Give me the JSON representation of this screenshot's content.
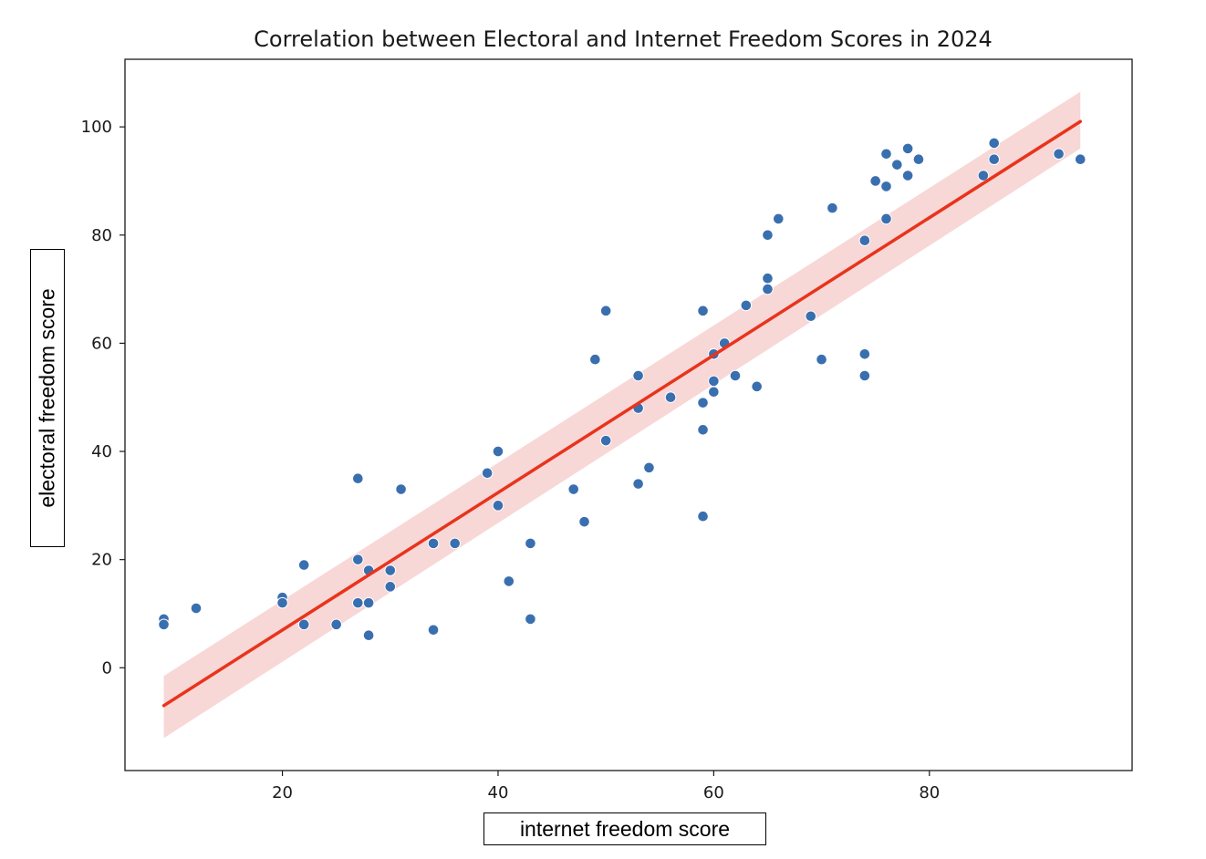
{
  "chart_data": {
    "type": "scatter",
    "title": "Correlation between Electoral and Internet Freedom Scores in 2024",
    "xlabel": "internet freedom score",
    "ylabel": "electoral freedom score",
    "xlim": [
      5.4,
      98.8
    ],
    "ylim": [
      -19.0,
      112.5
    ],
    "x_ticks": [
      20,
      40,
      60,
      80
    ],
    "y_ticks": [
      0,
      20,
      40,
      60,
      80,
      100
    ],
    "grid": false,
    "points": [
      {
        "x": 9,
        "y": 9
      },
      {
        "x": 9,
        "y": 8
      },
      {
        "x": 12,
        "y": 11
      },
      {
        "x": 20,
        "y": 13
      },
      {
        "x": 20,
        "y": 12
      },
      {
        "x": 22,
        "y": 19
      },
      {
        "x": 22,
        "y": 8
      },
      {
        "x": 25,
        "y": 8
      },
      {
        "x": 27,
        "y": 35
      },
      {
        "x": 27,
        "y": 20
      },
      {
        "x": 27,
        "y": 12
      },
      {
        "x": 28,
        "y": 18
      },
      {
        "x": 28,
        "y": 12
      },
      {
        "x": 28,
        "y": 6
      },
      {
        "x": 30,
        "y": 18
      },
      {
        "x": 30,
        "y": 15
      },
      {
        "x": 31,
        "y": 33
      },
      {
        "x": 34,
        "y": 23
      },
      {
        "x": 34,
        "y": 7
      },
      {
        "x": 36,
        "y": 23
      },
      {
        "x": 39,
        "y": 36
      },
      {
        "x": 40,
        "y": 40
      },
      {
        "x": 40,
        "y": 30
      },
      {
        "x": 41,
        "y": 16
      },
      {
        "x": 43,
        "y": 23
      },
      {
        "x": 43,
        "y": 9
      },
      {
        "x": 47,
        "y": 33
      },
      {
        "x": 48,
        "y": 27
      },
      {
        "x": 49,
        "y": 57
      },
      {
        "x": 50,
        "y": 66
      },
      {
        "x": 50,
        "y": 42
      },
      {
        "x": 53,
        "y": 54
      },
      {
        "x": 53,
        "y": 48
      },
      {
        "x": 53,
        "y": 34
      },
      {
        "x": 54,
        "y": 37
      },
      {
        "x": 56,
        "y": 50
      },
      {
        "x": 59,
        "y": 66
      },
      {
        "x": 59,
        "y": 49
      },
      {
        "x": 59,
        "y": 44
      },
      {
        "x": 59,
        "y": 28
      },
      {
        "x": 60,
        "y": 58
      },
      {
        "x": 60,
        "y": 53
      },
      {
        "x": 60,
        "y": 51
      },
      {
        "x": 61,
        "y": 60
      },
      {
        "x": 62,
        "y": 54
      },
      {
        "x": 63,
        "y": 67
      },
      {
        "x": 64,
        "y": 52
      },
      {
        "x": 65,
        "y": 80
      },
      {
        "x": 65,
        "y": 72
      },
      {
        "x": 65,
        "y": 70
      },
      {
        "x": 66,
        "y": 83
      },
      {
        "x": 69,
        "y": 65
      },
      {
        "x": 70,
        "y": 57
      },
      {
        "x": 71,
        "y": 85
      },
      {
        "x": 74,
        "y": 79
      },
      {
        "x": 74,
        "y": 58
      },
      {
        "x": 74,
        "y": 54
      },
      {
        "x": 75,
        "y": 90
      },
      {
        "x": 76,
        "y": 95
      },
      {
        "x": 76,
        "y": 89
      },
      {
        "x": 76,
        "y": 83
      },
      {
        "x": 77,
        "y": 93
      },
      {
        "x": 78,
        "y": 96
      },
      {
        "x": 78,
        "y": 91
      },
      {
        "x": 79,
        "y": 94
      },
      {
        "x": 85,
        "y": 91
      },
      {
        "x": 86,
        "y": 97
      },
      {
        "x": 86,
        "y": 94
      },
      {
        "x": 92,
        "y": 95
      },
      {
        "x": 94,
        "y": 94
      }
    ],
    "regression": {
      "x_range": [
        9,
        94
      ],
      "y_at_start": -7,
      "y_at_end": 101,
      "ci_lower": [
        -13,
        96
      ],
      "ci_upper": [
        -1.5,
        106.5
      ]
    },
    "colors": {
      "points": "#3a6faf",
      "point_edge": "#ffffff",
      "regression_line": "#e8341c",
      "ci_band": "#f6c9c9"
    }
  }
}
